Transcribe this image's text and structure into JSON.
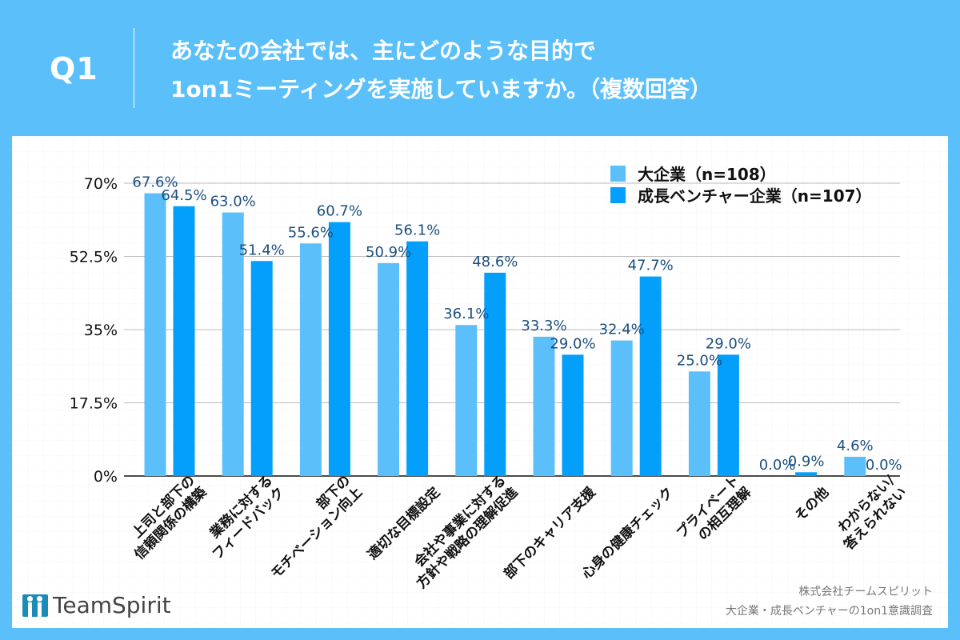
{
  "header": {
    "question_no": "Q1",
    "title_line1": "あなたの会社では、主にどのような目的で",
    "title_line2": "1on1ミーティングを実施していますか。（複数回答）"
  },
  "footer": {
    "logo_text": "TeamSpirit",
    "credit_line1": "株式会社チームスピリット",
    "credit_line2": "大企業・成長ベンチャーの1on1意識調査"
  },
  "colors": {
    "background": "#5BC0FA",
    "series_large": "#5BC0FA",
    "series_venture": "#049FFB",
    "data_label": "#1D4F7E"
  },
  "chart_data": {
    "type": "bar",
    "title": "あなたの会社では、主にどのような目的で1on1ミーティングを実施していますか。（複数回答）",
    "xlabel": "",
    "ylabel": "",
    "ylim": [
      0,
      70
    ],
    "yticks": [
      0,
      17.5,
      35,
      52.5,
      70
    ],
    "ytick_labels": [
      "0%",
      "17.5%",
      "35%",
      "52.5%",
      "70%"
    ],
    "grid": true,
    "legend_position": "top-right",
    "categories": [
      [
        "上司と部下の",
        "信頼関係の構築"
      ],
      [
        "業務に対する",
        "フィードバック"
      ],
      [
        "部下の",
        "モチベーション向上"
      ],
      [
        "適切な目標設定"
      ],
      [
        "会社や事業に対する",
        "方針や戦略の理解促進"
      ],
      [
        "部下のキャリア支援"
      ],
      [
        "心身の健康チェック"
      ],
      [
        "プライベート",
        "の相互理解"
      ],
      [
        "その他"
      ],
      [
        "わからない/",
        "答えられない"
      ]
    ],
    "series": [
      {
        "name": "大企業（n=108）",
        "values": [
          67.6,
          63.0,
          55.6,
          50.9,
          36.1,
          33.3,
          32.4,
          25.0,
          0.0,
          4.6
        ],
        "labels": [
          "67.6%",
          "63.0%",
          "55.6%",
          "50.9%",
          "36.1%",
          "33.3%",
          "32.4%",
          "25.0%",
          "0.0%",
          "4.6%"
        ]
      },
      {
        "name": "成長ベンチャー企業（n=107）",
        "values": [
          64.5,
          51.4,
          60.7,
          56.1,
          48.6,
          29.0,
          47.7,
          29.0,
          0.9,
          0.0
        ],
        "labels": [
          "64.5%",
          "51.4%",
          "60.7%",
          "56.1%",
          "48.6%",
          "29.0%",
          "47.7%",
          "29.0%",
          "0.9%",
          "0.0%"
        ]
      }
    ]
  }
}
